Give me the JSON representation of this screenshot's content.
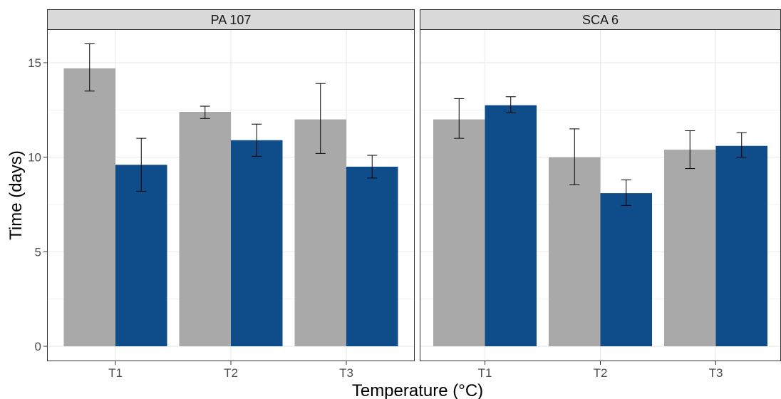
{
  "chart_data": {
    "type": "bar",
    "xlabel": "Temperature (°C)",
    "ylabel": "Time (days)",
    "ylim": [
      0,
      17.0
    ],
    "yticks": [
      0,
      5,
      10,
      15
    ],
    "grid": true,
    "categories": [
      "T1",
      "T2",
      "T3"
    ],
    "series_colors": [
      "#a9a9a9",
      "#0f4c8a"
    ],
    "panels": [
      {
        "title": "PA 107",
        "series": [
          {
            "values": [
              14.7,
              12.4,
              12.0
            ],
            "err_low": [
              13.5,
              12.05,
              10.2
            ],
            "err_high": [
              16.0,
              12.7,
              13.9
            ]
          },
          {
            "values": [
              9.6,
              10.9,
              9.5
            ],
            "err_low": [
              8.2,
              10.05,
              8.9
            ],
            "err_high": [
              11.0,
              11.75,
              10.1
            ]
          }
        ]
      },
      {
        "title": "SCA 6",
        "series": [
          {
            "values": [
              12.0,
              10.0,
              10.4
            ],
            "err_low": [
              11.0,
              8.55,
              9.4
            ],
            "err_high": [
              13.1,
              11.5,
              11.4
            ]
          },
          {
            "values": [
              12.75,
              8.1,
              10.6
            ],
            "err_low": [
              12.35,
              7.45,
              10.0
            ],
            "err_high": [
              13.2,
              8.8,
              11.3
            ]
          }
        ]
      }
    ]
  }
}
